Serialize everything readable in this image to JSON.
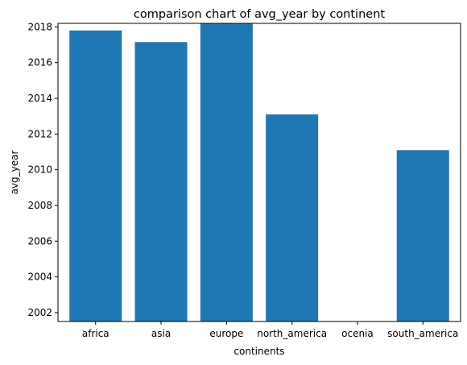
{
  "chart_data": {
    "type": "bar",
    "title": "comparison chart of avg_year by continent",
    "xlabel": "continents",
    "ylabel": "avg_year",
    "categories": [
      "africa",
      "asia",
      "europe",
      "north_america",
      "ocenia",
      "south_america"
    ],
    "values": [
      2017.8,
      2017.15,
      2018.2,
      2013.1,
      null,
      2011.1
    ],
    "ylim": [
      2001.5,
      2018.2
    ],
    "yticks": [
      2002,
      2004,
      2006,
      2008,
      2010,
      2012,
      2014,
      2016,
      2018
    ],
    "bar_color": "#1f77b4",
    "grid": false,
    "legend": "none"
  }
}
